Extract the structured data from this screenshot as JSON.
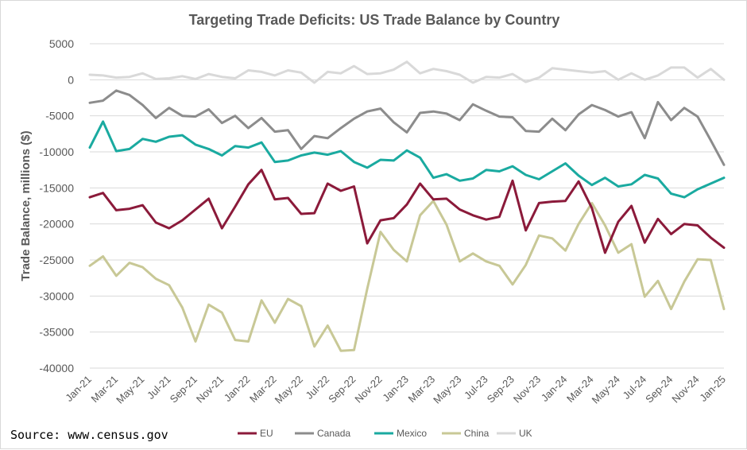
{
  "source_note": "Source: www.census.gov",
  "chart_data": {
    "type": "line",
    "title": "Targeting Trade Deficits: US Trade Balance by Country",
    "xlabel": "",
    "ylabel": "Trade Balance, millions ($)",
    "ylim": [
      -40000,
      5000
    ],
    "yticks": [
      5000,
      0,
      -5000,
      -10000,
      -15000,
      -20000,
      -25000,
      -30000,
      -35000,
      -40000
    ],
    "grid": true,
    "legend_position": "bottom",
    "x_tick_labels": [
      "Jan-21",
      "Mar-21",
      "May-21",
      "Jul-21",
      "Sep-21",
      "Nov-21",
      "Jan-22",
      "Mar-22",
      "May-22",
      "Jul-22",
      "Sep-22",
      "Nov-22",
      "Jan-23",
      "Mar-23",
      "May-23",
      "Jul-23",
      "Sep-23",
      "Nov-23",
      "Jan-24",
      "Mar-24",
      "May-24",
      "Jul-24",
      "Sep-24",
      "Nov-24",
      "Jan-25"
    ],
    "x": [
      "Jan-21",
      "Feb-21",
      "Mar-21",
      "Apr-21",
      "May-21",
      "Jun-21",
      "Jul-21",
      "Aug-21",
      "Sep-21",
      "Oct-21",
      "Nov-21",
      "Dec-21",
      "Jan-22",
      "Feb-22",
      "Mar-22",
      "Apr-22",
      "May-22",
      "Jun-22",
      "Jul-22",
      "Aug-22",
      "Sep-22",
      "Oct-22",
      "Nov-22",
      "Dec-22",
      "Jan-23",
      "Feb-23",
      "Mar-23",
      "Apr-23",
      "May-23",
      "Jun-23",
      "Jul-23",
      "Aug-23",
      "Sep-23",
      "Oct-23",
      "Nov-23",
      "Dec-23",
      "Jan-24",
      "Feb-24",
      "Mar-24",
      "Apr-24",
      "May-24",
      "Jun-24",
      "Jul-24",
      "Aug-24",
      "Sep-24",
      "Oct-24",
      "Nov-24",
      "Dec-24",
      "Jan-25"
    ],
    "series": [
      {
        "name": "EU",
        "color": "#8b1a3a",
        "values": [
          -16300,
          -15700,
          -18100,
          -17900,
          -17400,
          -19800,
          -20600,
          -19500,
          -18000,
          -16500,
          -20600,
          -17600,
          -14500,
          -12500,
          -16600,
          -16400,
          -18600,
          -18500,
          -14400,
          -15400,
          -14800,
          -22700,
          -19500,
          -19200,
          -17300,
          -14400,
          -16600,
          -16500,
          -18000,
          -18800,
          -19400,
          -19000,
          -14000,
          -20900,
          -17100,
          -16900,
          -16800,
          -14100,
          -17800,
          -24000,
          -19700,
          -17500,
          -22600,
          -19300,
          -21400,
          -20000,
          -20200,
          -21900,
          -23300
        ]
      },
      {
        "name": "Canada",
        "color": "#8c8c8c",
        "values": [
          -3200,
          -2900,
          -1500,
          -2100,
          -3500,
          -5300,
          -3900,
          -5000,
          -5100,
          -4100,
          -6000,
          -5000,
          -6700,
          -5300,
          -7200,
          -7000,
          -9600,
          -7800,
          -8100,
          -6700,
          -5400,
          -4400,
          -4000,
          -5900,
          -7300,
          -4600,
          -4400,
          -4700,
          -5600,
          -3400,
          -4300,
          -5100,
          -5200,
          -7100,
          -7200,
          -5400,
          -7000,
          -4800,
          -3500,
          -4200,
          -5100,
          -4500,
          -8100,
          -3100,
          -5600,
          -3900,
          -5100,
          -8400,
          -11800
        ]
      },
      {
        "name": "Mexico",
        "color": "#1aaaa0",
        "values": [
          -9400,
          -5800,
          -9900,
          -9600,
          -8200,
          -8600,
          -7900,
          -7700,
          -9000,
          -9600,
          -10500,
          -9200,
          -9400,
          -8700,
          -11400,
          -11200,
          -10500,
          -10100,
          -10400,
          -9900,
          -11400,
          -12200,
          -11100,
          -11200,
          -9800,
          -10800,
          -13600,
          -13100,
          -14000,
          -13700,
          -12500,
          -12700,
          -12000,
          -13200,
          -13800,
          -12700,
          -11600,
          -13300,
          -14600,
          -13600,
          -14800,
          -14500,
          -13200,
          -13700,
          -15800,
          -16300,
          -15200,
          -14400,
          -13600
        ]
      },
      {
        "name": "China",
        "color": "#c8c896",
        "values": [
          -25800,
          -24500,
          -27200,
          -25400,
          -26000,
          -27600,
          -28500,
          -31600,
          -36300,
          -31200,
          -32300,
          -36100,
          -36300,
          -30600,
          -33700,
          -30400,
          -31400,
          -37000,
          -34100,
          -37600,
          -37500,
          -29000,
          -21100,
          -23600,
          -25200,
          -18800,
          -16800,
          -20100,
          -25200,
          -24100,
          -25200,
          -25800,
          -28400,
          -25700,
          -21600,
          -22000,
          -23700,
          -20000,
          -17100,
          -20200,
          -24000,
          -22800,
          -30100,
          -27900,
          -31800,
          -28000,
          -24900,
          -25000,
          -31800
        ]
      },
      {
        "name": "UK",
        "color": "#d9d9d9",
        "values": [
          700,
          600,
          300,
          400,
          900,
          100,
          200,
          500,
          100,
          800,
          400,
          200,
          1300,
          1100,
          600,
          1300,
          1000,
          -400,
          1100,
          900,
          1900,
          800,
          900,
          1400,
          2500,
          900,
          1500,
          1200,
          700,
          -400,
          400,
          300,
          800,
          -300,
          300,
          1600,
          1400,
          1200,
          1000,
          1200,
          0,
          900,
          0,
          600,
          1700,
          1700,
          300,
          1500,
          0
        ]
      }
    ]
  }
}
